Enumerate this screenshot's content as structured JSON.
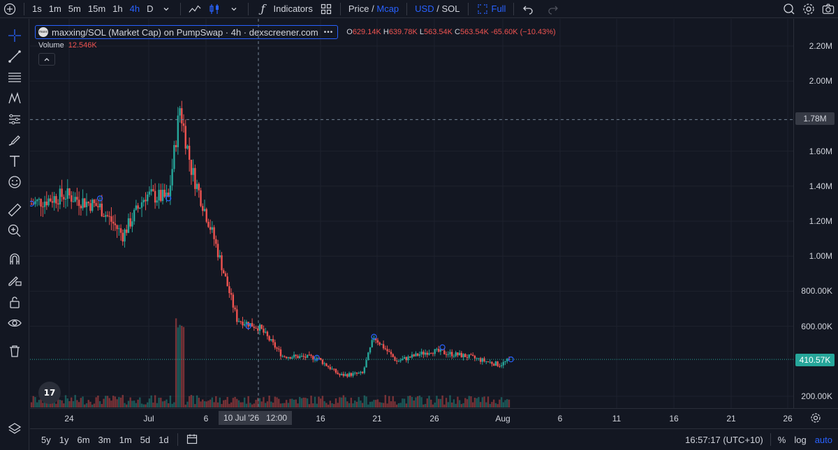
{
  "toolbar": {
    "intervals": [
      "1s",
      "1m",
      "5m",
      "15m",
      "1h",
      "4h",
      "D"
    ],
    "active_interval": "4h",
    "indicators_label": "Indicators",
    "price_label": "Price",
    "mcap_label": "Mcap",
    "price_sep": "/",
    "usd_label": "USD",
    "sol_label": "SOL",
    "full_label": "Full"
  },
  "legend": {
    "title": "maxxing/SOL (Market Cap) on PumpSwap · 4h · dexscreener.com",
    "more": "•••",
    "logo_text": "maxx",
    "o_key": "O",
    "o_val": "629.14K",
    "h_key": "H",
    "h_val": "639.78K",
    "l_key": "L",
    "l_val": "563.54K",
    "c_key": "C",
    "c_val": "563.54K",
    "change": "-65.60K (−10.43%)"
  },
  "volume": {
    "label": "Volume",
    "value": "12.546K"
  },
  "price_axis": {
    "labels": [
      "2.20M",
      "2.00M",
      "1.60M",
      "1.40M",
      "1.20M",
      "1.00M",
      "800.00K",
      "600.00K",
      "200.00K"
    ],
    "crosshair_price": "1.78M",
    "last_price": "410.57K"
  },
  "time_axis": {
    "labels": [
      "24",
      "Jul",
      "6",
      "16",
      "21",
      "26",
      "Aug",
      "6",
      "11",
      "16",
      "21",
      "26"
    ],
    "crosshair_label": "10 Jul '26   12:00"
  },
  "bottom_bar": {
    "ranges": [
      "5y",
      "1y",
      "6m",
      "3m",
      "1m",
      "5d",
      "1d"
    ],
    "clock": "16:57:17 (UTC+10)",
    "percent_label": "%",
    "log_label": "log",
    "auto_label": "auto"
  },
  "colors": {
    "up": "#26a69a",
    "down": "#ef5350",
    "accent": "#2962ff",
    "bg": "#131722"
  },
  "chart_data": {
    "type": "candlestick",
    "title": "maxxing/SOL (Market Cap) on PumpSwap · 4h · dexscreener.com",
    "interval": "4h",
    "y_unit": "USD market cap",
    "ylim": [
      150000,
      2300000
    ],
    "y_ticks": [
      200000,
      600000,
      800000,
      1000000,
      1200000,
      1400000,
      1600000,
      2000000,
      2200000
    ],
    "x_ticks": [
      "24",
      "Jul",
      "6",
      "16",
      "21",
      "26",
      "Aug",
      "6",
      "11",
      "16",
      "21",
      "26"
    ],
    "approx_close_path": [
      {
        "date": "Jun 21",
        "close": 1300000
      },
      {
        "date": "Jun 24",
        "close": 1350000
      },
      {
        "date": "Jun 27",
        "close": 1280000
      },
      {
        "date": "Jun 29",
        "close": 1120000
      },
      {
        "date": "Jul 1",
        "close": 1350000
      },
      {
        "date": "Jul 3",
        "close": 1330000
      },
      {
        "date": "Jul 4",
        "close": 1850000
      },
      {
        "date": "Jul 5",
        "close": 1500000
      },
      {
        "date": "Jul 7",
        "close": 1100000
      },
      {
        "date": "Jul 9",
        "close": 640000
      },
      {
        "date": "Jul 11",
        "close": 590000
      },
      {
        "date": "Jul 13",
        "close": 430000
      },
      {
        "date": "Jul 16",
        "close": 420000
      },
      {
        "date": "Jul 18",
        "close": 320000
      },
      {
        "date": "Jul 20",
        "close": 330000
      },
      {
        "date": "Jul 21",
        "close": 540000
      },
      {
        "date": "Jul 23",
        "close": 400000
      },
      {
        "date": "Jul 26",
        "close": 460000
      },
      {
        "date": "Jul 29",
        "close": 430000
      },
      {
        "date": "Aug 1",
        "close": 380000
      },
      {
        "date": "Aug 2",
        "close": 410570
      }
    ],
    "last_price": 410570,
    "crosshair": {
      "date": "10 Jul '26 12:00",
      "price": 1780000
    },
    "grid": true
  }
}
